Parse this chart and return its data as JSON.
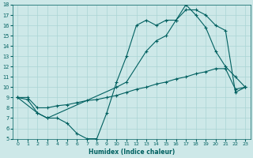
{
  "xlabel": "Humidex (Indice chaleur)",
  "xlim": [
    -0.5,
    23.5
  ],
  "ylim": [
    5,
    18
  ],
  "yticks": [
    5,
    6,
    7,
    8,
    9,
    10,
    11,
    12,
    13,
    14,
    15,
    16,
    17,
    18
  ],
  "xticks": [
    0,
    1,
    2,
    3,
    4,
    5,
    6,
    7,
    8,
    9,
    10,
    11,
    12,
    13,
    14,
    15,
    16,
    17,
    18,
    19,
    20,
    21,
    22,
    23
  ],
  "bg_color": "#cde8e8",
  "line_color": "#006060",
  "grid_color": "#aad4d4",
  "line1_x": [
    0,
    1,
    2,
    3,
    4,
    5,
    6,
    7,
    8,
    9,
    10,
    11,
    12,
    13,
    14,
    15,
    16,
    17,
    18,
    19,
    20,
    21,
    22,
    23
  ],
  "line1_y": [
    9,
    8.8,
    7.5,
    7,
    7,
    6.5,
    5.5,
    5,
    5,
    7.5,
    10.5,
    13,
    16.0,
    16.5,
    16.0,
    16.5,
    16.5,
    18.0,
    17.0,
    15.8,
    13.5,
    12.0,
    11.0,
    10.0
  ],
  "line2_x": [
    0,
    2,
    3,
    10,
    11,
    13,
    14,
    15,
    16,
    17,
    18,
    19,
    20,
    21,
    22,
    23
  ],
  "line2_y": [
    9,
    7.5,
    7.0,
    10.0,
    10.5,
    13.5,
    14.5,
    15.0,
    16.5,
    17.5,
    17.5,
    17.0,
    16.0,
    15.5,
    9.5,
    10.0
  ],
  "line3_x": [
    0,
    1,
    2,
    3,
    4,
    5,
    6,
    7,
    8,
    9,
    10,
    11,
    12,
    13,
    14,
    15,
    16,
    17,
    18,
    19,
    20,
    21,
    22,
    23
  ],
  "line3_y": [
    9.0,
    9.0,
    8.0,
    8.0,
    8.2,
    8.3,
    8.5,
    8.7,
    8.8,
    9.0,
    9.2,
    9.5,
    9.8,
    10.0,
    10.3,
    10.5,
    10.8,
    11.0,
    11.3,
    11.5,
    11.8,
    11.8,
    9.8,
    10.0
  ]
}
